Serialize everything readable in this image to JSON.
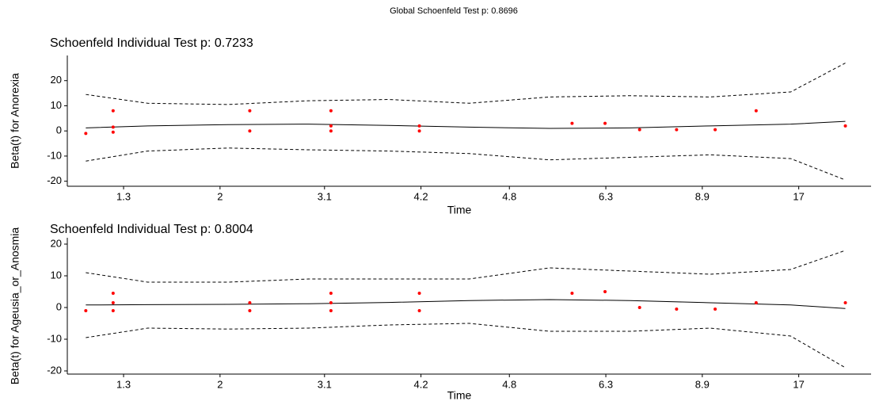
{
  "title": "Global Schoenfeld Test p: 0.8696",
  "chart_data": [
    {
      "type": "scatter",
      "title": "Schoenfeld Individual Test p: 0.7233",
      "xlabel": "Time",
      "ylabel": "Beta(t) for Anorexia",
      "xlim": [
        0,
        1
      ],
      "ylim": [
        -22,
        30
      ],
      "xticks": [
        {
          "value": 0.07,
          "label": "1.3"
        },
        {
          "value": 0.19,
          "label": "2"
        },
        {
          "value": 0.32,
          "label": "3.1"
        },
        {
          "value": 0.44,
          "label": "4.2"
        },
        {
          "value": 0.55,
          "label": "4.8"
        },
        {
          "value": 0.67,
          "label": "6.3"
        },
        {
          "value": 0.79,
          "label": "8.9"
        },
        {
          "value": 0.91,
          "label": "17"
        }
      ],
      "yticks": [
        -20,
        -10,
        0,
        10,
        20
      ],
      "points": {
        "color": "#ff0000",
        "x": [
          0.023,
          0.057,
          0.057,
          0.057,
          0.227,
          0.227,
          0.328,
          0.328,
          0.328,
          0.438,
          0.438,
          0.628,
          0.669,
          0.712,
          0.758,
          0.806,
          0.857,
          0.968
        ],
        "values": [
          -1,
          8,
          1.5,
          -0.5,
          8,
          0,
          8,
          2,
          0,
          2,
          0,
          3,
          3,
          0.5,
          0.5,
          0.5,
          8,
          2
        ]
      },
      "fit": {
        "color": "#000000",
        "x": [
          0.023,
          0.1,
          0.2,
          0.3,
          0.4,
          0.5,
          0.6,
          0.7,
          0.8,
          0.9,
          0.968
        ],
        "values": [
          1.2,
          2,
          2.5,
          2.7,
          2.2,
          1.5,
          1,
          1.2,
          2,
          2.7,
          3.8
        ]
      },
      "upper": {
        "color": "#000000",
        "x": [
          0.023,
          0.1,
          0.2,
          0.3,
          0.4,
          0.5,
          0.6,
          0.7,
          0.8,
          0.9,
          0.968
        ],
        "values": [
          14.5,
          11,
          10.5,
          12,
          12.5,
          11,
          13.5,
          14,
          13.5,
          15.5,
          27
        ]
      },
      "lower": {
        "color": "#000000",
        "x": [
          0.023,
          0.1,
          0.2,
          0.3,
          0.4,
          0.5,
          0.6,
          0.7,
          0.8,
          0.9,
          0.968
        ],
        "values": [
          -12,
          -8,
          -6.8,
          -7.5,
          -8,
          -9,
          -11.5,
          -10.5,
          -9.5,
          -11,
          -19.5
        ]
      }
    },
    {
      "type": "scatter",
      "title": "Schoenfeld Individual Test p: 0.8004",
      "xlabel": "Time",
      "ylabel": "Beta(t) for Ageusia_or_Anosmia",
      "xlim": [
        0,
        1
      ],
      "ylim": [
        -21,
        22
      ],
      "xticks": [
        {
          "value": 0.07,
          "label": "1.3"
        },
        {
          "value": 0.19,
          "label": "2"
        },
        {
          "value": 0.32,
          "label": "3.1"
        },
        {
          "value": 0.44,
          "label": "4.2"
        },
        {
          "value": 0.55,
          "label": "4.8"
        },
        {
          "value": 0.67,
          "label": "6.3"
        },
        {
          "value": 0.79,
          "label": "8.9"
        },
        {
          "value": 0.91,
          "label": "17"
        }
      ],
      "yticks": [
        -20,
        -10,
        0,
        10,
        20
      ],
      "points": {
        "color": "#ff0000",
        "x": [
          0.023,
          0.057,
          0.057,
          0.057,
          0.227,
          0.227,
          0.328,
          0.328,
          0.328,
          0.438,
          0.438,
          0.628,
          0.669,
          0.712,
          0.758,
          0.806,
          0.857,
          0.968
        ],
        "values": [
          -1,
          4.5,
          1.5,
          -1,
          1.5,
          -1,
          4.5,
          1.5,
          -1,
          4.5,
          -1,
          4.5,
          5,
          0,
          -0.5,
          -0.5,
          1.5,
          1.5
        ]
      },
      "fit": {
        "color": "#000000",
        "x": [
          0.023,
          0.1,
          0.2,
          0.3,
          0.4,
          0.5,
          0.6,
          0.7,
          0.8,
          0.9,
          0.968
        ],
        "values": [
          0.8,
          0.9,
          1,
          1.2,
          1.6,
          2.2,
          2.5,
          2.2,
          1.5,
          0.8,
          -0.3
        ]
      },
      "upper": {
        "color": "#000000",
        "x": [
          0.023,
          0.1,
          0.2,
          0.3,
          0.4,
          0.5,
          0.6,
          0.7,
          0.8,
          0.9,
          0.968
        ],
        "values": [
          11,
          8,
          8,
          9,
          9,
          9,
          12.5,
          11.5,
          10.5,
          12,
          18
        ]
      },
      "lower": {
        "color": "#000000",
        "x": [
          0.023,
          0.1,
          0.2,
          0.3,
          0.4,
          0.5,
          0.6,
          0.7,
          0.8,
          0.9,
          0.968
        ],
        "values": [
          -9.5,
          -6.5,
          -6.8,
          -6.5,
          -5.5,
          -5,
          -7.5,
          -7.5,
          -6.5,
          -9,
          -19
        ]
      }
    }
  ]
}
